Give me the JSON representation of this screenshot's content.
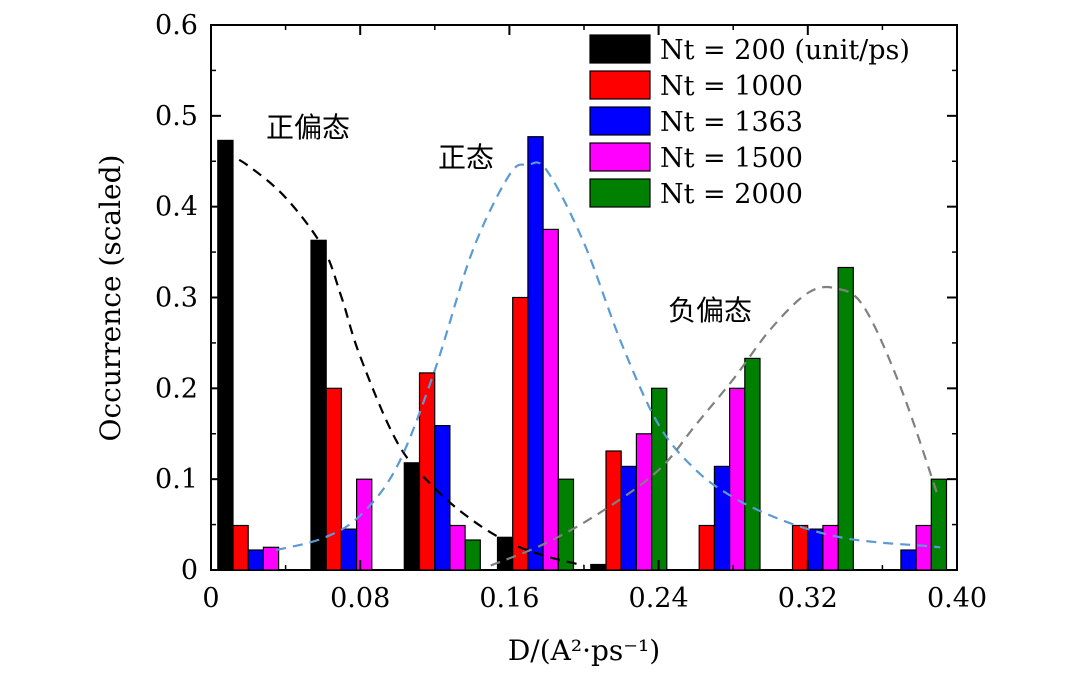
{
  "chart_data": {
    "type": "bar",
    "x_ticks": [
      "0",
      "0.08",
      "0.16",
      "0.24",
      "0.32",
      "0.40"
    ],
    "y_ticks": [
      "0",
      "0.1",
      "0.2",
      "0.3",
      "0.4",
      "0.5",
      "0.6"
    ],
    "xlim": [
      0,
      0.4
    ],
    "ylim": [
      0,
      0.6
    ],
    "xlabel": "D/(A²·ps⁻¹)",
    "ylabel": "Occurrence (scaled)",
    "grid": false,
    "legend_position": "top-right",
    "bin_centers": [
      0.024,
      0.074,
      0.124,
      0.174,
      0.224,
      0.274,
      0.324,
      0.374
    ],
    "series": [
      {
        "name": "N_t = 200 (unit/ps)",
        "legend_label": "Nt = 200 (unit/ps)",
        "color": "#000000",
        "values": [
          0.473,
          0.363,
          0.118,
          0.036,
          0.006,
          0,
          0,
          0
        ]
      },
      {
        "name": "N_t = 1000",
        "legend_label": "Nt = 1000",
        "color": "#ff0000",
        "values": [
          0.049,
          0.2,
          0.217,
          0.3,
          0.131,
          0.049,
          0.049,
          0
        ]
      },
      {
        "name": "N_t = 1363",
        "legend_label": "Nt = 1363",
        "color": "#0000ff",
        "values": [
          0.022,
          0.045,
          0.159,
          0.477,
          0.114,
          0.114,
          0.045,
          0.022
        ]
      },
      {
        "name": "N_t = 1500",
        "legend_label": "Nt = 1500",
        "color": "#ff00ff",
        "values": [
          0.025,
          0.1,
          0.049,
          0.375,
          0.15,
          0.2,
          0.049,
          0.049
        ]
      },
      {
        "name": "N_t = 2000",
        "legend_label": "Nt = 2000",
        "color": "#008000",
        "values": [
          0,
          0,
          0.033,
          0.1,
          0.2,
          0.233,
          0.333,
          0.1
        ]
      }
    ],
    "fit_curves": [
      {
        "color": "#000000",
        "x": [
          0.007,
          0.02,
          0.04,
          0.06,
          0.07,
          0.08,
          0.1,
          0.12,
          0.14,
          0.16,
          0.18,
          0.2
        ],
        "y": [
          0.46,
          0.445,
          0.41,
          0.355,
          0.3,
          0.235,
          0.14,
          0.09,
          0.055,
          0.03,
          0.015,
          0.005
        ]
      },
      {
        "color": "#5b9bd5",
        "x": [
          0.035,
          0.06,
          0.08,
          0.1,
          0.12,
          0.14,
          0.16,
          0.17,
          0.18,
          0.2,
          0.22,
          0.24,
          0.26,
          0.28,
          0.3,
          0.32,
          0.34,
          0.36,
          0.38,
          0.391
        ],
        "y": [
          0.022,
          0.035,
          0.06,
          0.115,
          0.22,
          0.35,
          0.435,
          0.446,
          0.44,
          0.36,
          0.25,
          0.16,
          0.11,
          0.08,
          0.06,
          0.045,
          0.035,
          0.03,
          0.027,
          0.025
        ]
      },
      {
        "color": "#808080",
        "x": [
          0.15,
          0.18,
          0.21,
          0.24,
          0.26,
          0.28,
          0.3,
          0.32,
          0.335,
          0.35,
          0.37,
          0.39
        ],
        "y": [
          0.005,
          0.03,
          0.065,
          0.11,
          0.16,
          0.21,
          0.265,
          0.305,
          0.31,
          0.29,
          0.2,
          0.08
        ]
      }
    ],
    "annotations": [
      "正偏态",
      "正态",
      "负偏态"
    ]
  }
}
